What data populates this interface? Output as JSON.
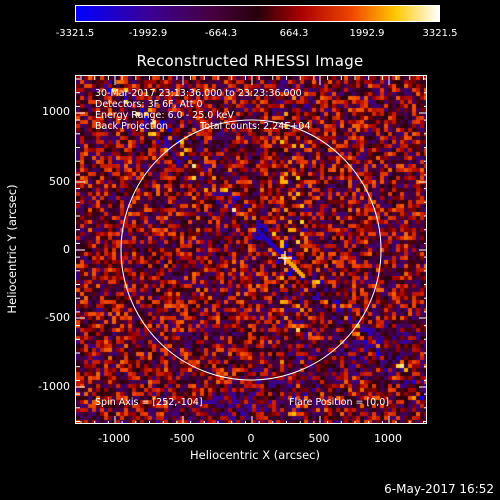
{
  "title": "Reconstructed RHESSI Image",
  "colorbar": {
    "ticks": [
      "-3321.5",
      "-1992.9",
      "-664.3",
      "664.3",
      "1992.9",
      "3321.5"
    ],
    "min": -3321.5,
    "max": 3321.5,
    "colormap": "blue-purple-red-yellow-white"
  },
  "annotations": {
    "time_range": "30-Mar-2017 23:13:36.000 to 23:23:36.000",
    "detectors": "Detectors: 3F 6F, Att 0",
    "energy": "Energy Range: 6.0 - 25.0 keV",
    "method": "Back Projection",
    "counts": "Total counts: 2.24E+04",
    "spin_axis": "Spin Axis = [252,-104]",
    "flare_position": "Flare Position = [0,0]"
  },
  "axes": {
    "xlabel": "Heliocentric X (arcsec)",
    "ylabel": "Heliocentric Y (arcsec)",
    "xticks": [
      "-1000",
      "-500",
      "0",
      "500",
      "1000"
    ],
    "yticks": [
      "1000",
      "500",
      "0",
      "-500",
      "-1000"
    ]
  },
  "timestamp": "6-May-2017 16:52",
  "chart_data": {
    "type": "heatmap",
    "title": "Reconstructed RHESSI Image",
    "xlabel": "Heliocentric X (arcsec)",
    "ylabel": "Heliocentric Y (arcsec)",
    "xlim": [
      -1280,
      1280
    ],
    "ylim": [
      -1280,
      1280
    ],
    "zlim": [
      -3321.5,
      3321.5
    ],
    "solar_limb_radius": 960,
    "spin_axis": [
      252,
      -104
    ]
  }
}
